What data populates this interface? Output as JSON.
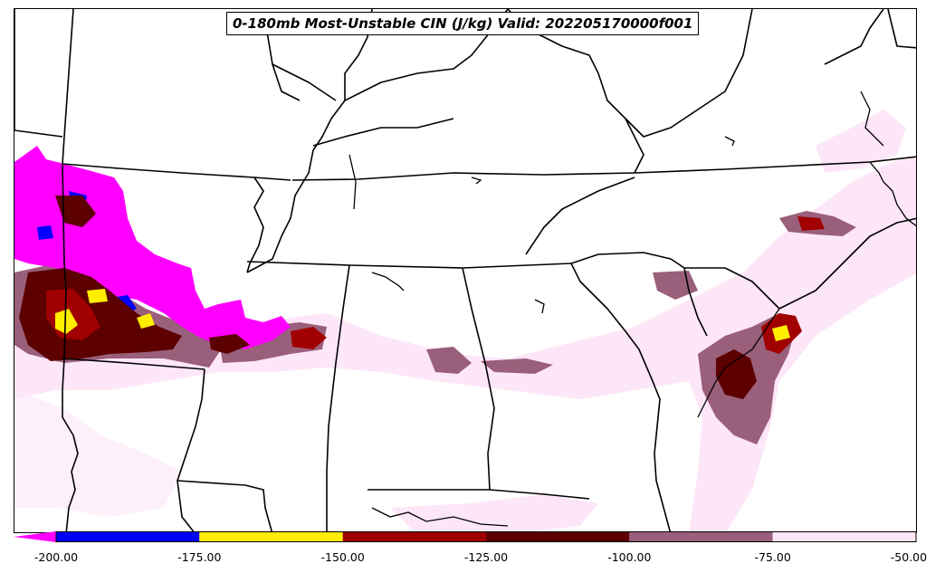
{
  "title": "0-180mb Most-Unstable CIN (J/kg) Valid: 202205170000f001",
  "colorbar": {
    "min": -200,
    "max": -50,
    "extend": "min",
    "bins": [
      {
        "from": -200,
        "to": -175,
        "color": "#0000ff"
      },
      {
        "from": -175,
        "to": -150,
        "color": "#ffee00"
      },
      {
        "from": -150,
        "to": -125,
        "color": "#a00000"
      },
      {
        "from": -125,
        "to": -100,
        "color": "#5c0000"
      },
      {
        "from": -100,
        "to": -75,
        "color": "#9a5f7a"
      },
      {
        "from": -75,
        "to": -50,
        "color": "#fde6f8"
      }
    ],
    "under_color": "#ff00ff",
    "tick_labels": [
      "-200.00",
      "-175.00",
      "-150.00",
      "-125.00",
      "-100.00",
      "-75.00",
      "-50.00"
    ],
    "tick_values": [
      -200,
      -175,
      -150,
      -125,
      -100,
      -75,
      -50
    ]
  },
  "colors": {
    "under": "#ff00ff",
    "very_strong": "#0000ff",
    "strong": "#ffee00",
    "moderate": "#a00000",
    "mid": "#5c0000",
    "weak": "#9a5f7a",
    "very_weak": "#fde6f8",
    "borders": "#000000"
  }
}
